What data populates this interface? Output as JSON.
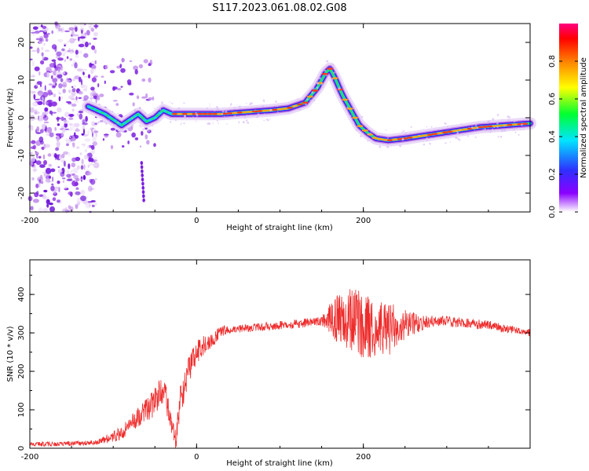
{
  "figure": {
    "title": "S117.2023.061.08.02.G08"
  },
  "chart_data": [
    {
      "type": "heatmap",
      "title": "S117.2023.061.08.02.G08",
      "xlabel": "Height of straight line (km)",
      "ylabel": "Frequency (Hz)",
      "xlim": [
        -200,
        400
      ],
      "ylim": [
        -25,
        25
      ],
      "xticks": [
        -200,
        0,
        200
      ],
      "yticks": [
        -20,
        -10,
        0,
        10,
        20
      ],
      "colorbar": {
        "label": "Normalized spectral amplitude",
        "range": [
          0,
          1
        ],
        "ticks": [
          0.0,
          0.2,
          0.4,
          0.6,
          0.8
        ]
      },
      "ridge": {
        "x": [
          -130,
          -110,
          -90,
          -70,
          -60,
          -50,
          -40,
          -30,
          -20,
          0,
          30,
          60,
          90,
          110,
          130,
          145,
          155,
          160,
          165,
          175,
          185,
          195,
          205,
          215,
          230,
          250,
          280,
          310,
          340,
          370,
          400
        ],
        "y": [
          3,
          1,
          -2,
          1,
          -1,
          0,
          2,
          1,
          1,
          1,
          1,
          1.5,
          2,
          2.5,
          4,
          8,
          12,
          13,
          11,
          6,
          2,
          -2,
          -4,
          -5.5,
          -6,
          -5.5,
          -4.5,
          -3.5,
          -2.5,
          -2,
          -1.5
        ]
      },
      "noise_region_x": [
        -200,
        -120
      ]
    },
    {
      "type": "line",
      "xlabel": "Height of straight line (km)",
      "ylabel": "SNR (10 * v/v)",
      "xlim": [
        -200,
        400
      ],
      "ylim": [
        0,
        490
      ],
      "xticks": [
        -200,
        0,
        200
      ],
      "yticks": [
        0,
        100,
        200,
        300,
        400
      ],
      "color": "#ee2b2b",
      "envelope": {
        "x": [
          -200,
          -150,
          -120,
          -100,
          -90,
          -80,
          -70,
          -60,
          -50,
          -40,
          -30,
          -25,
          -20,
          -15,
          -10,
          0,
          10,
          20,
          30,
          50,
          100,
          150,
          170,
          190,
          200,
          210,
          230,
          250,
          270,
          300,
          350,
          400
        ],
        "y": [
          10,
          12,
          15,
          30,
          40,
          60,
          80,
          100,
          120,
          160,
          60,
          15,
          120,
          150,
          200,
          250,
          270,
          285,
          305,
          310,
          320,
          330,
          340,
          330,
          320,
          315,
          310,
          320,
          330,
          330,
          320,
          300
        ]
      },
      "spread": {
        "x": [
          -200,
          -120,
          -90,
          -60,
          -40,
          -30,
          -20,
          -10,
          20,
          40,
          150,
          170,
          190,
          210,
          230,
          250,
          280,
          400
        ],
        "y": [
          6,
          6,
          18,
          30,
          45,
          20,
          40,
          35,
          20,
          10,
          12,
          70,
          90,
          80,
          70,
          40,
          15,
          10
        ]
      }
    }
  ]
}
